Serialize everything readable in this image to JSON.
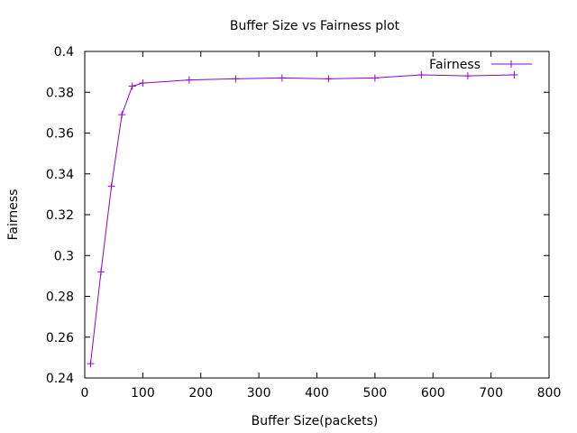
{
  "chart_data": {
    "type": "line",
    "title": "Buffer Size vs Fairness plot",
    "xlabel": "Buffer Size(packets)",
    "ylabel": "Fairness",
    "xlim": [
      0,
      800
    ],
    "ylim": [
      0.24,
      0.4
    ],
    "xticks": [
      0,
      100,
      200,
      300,
      400,
      500,
      600,
      700,
      800
    ],
    "yticks": [
      0.24,
      0.26,
      0.28,
      0.3,
      0.32,
      0.34,
      0.36,
      0.38,
      0.4
    ],
    "xtick_labels": [
      "0",
      "100",
      "200",
      "300",
      "400",
      "500",
      "600",
      "700",
      "800"
    ],
    "ytick_labels": [
      "0.24",
      "0.26",
      "0.28",
      "0.3",
      "0.32",
      "0.34",
      "0.36",
      "0.38",
      "0.4"
    ],
    "grid": false,
    "legend": {
      "position": "top-right"
    },
    "series": [
      {
        "name": "Fairness",
        "color": "#9400d3",
        "marker": "plus",
        "x": [
          10,
          28,
          46,
          64,
          82,
          100,
          180,
          260,
          340,
          420,
          500,
          580,
          660,
          740
        ],
        "y": [
          0.247,
          0.292,
          0.334,
          0.369,
          0.383,
          0.3845,
          0.386,
          0.3866,
          0.387,
          0.3866,
          0.387,
          0.3885,
          0.388,
          0.3885
        ]
      }
    ]
  }
}
